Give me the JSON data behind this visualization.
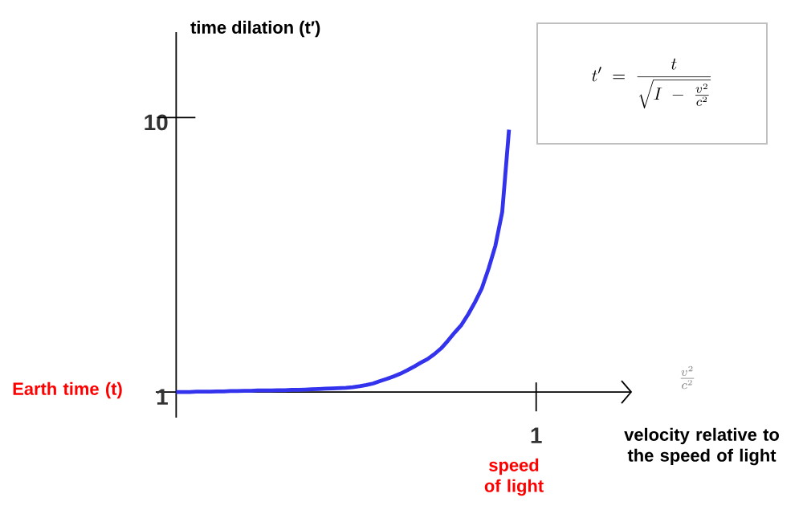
{
  "chart_data": {
    "type": "line",
    "ylabel": "time dilation (t′)",
    "categories": [
      null,
      null,
      null,
      null,
      null,
      null,
      null,
      null,
      null,
      null,
      null,
      null,
      null,
      null,
      null,
      null,
      null,
      null,
      null,
      null,
      null,
      null,
      null,
      null,
      null,
      null,
      null,
      null,
      null,
      null,
      null,
      null,
      null,
      null,
      null,
      null,
      null,
      null,
      null,
      null,
      null,
      null,
      null,
      null,
      null,
      null,
      null,
      null,
      null,
      null
    ],
    "values": [
      1,
      1,
      1,
      1.01,
      1.01,
      1.01,
      1.02,
      1.02,
      1.03,
      1.03,
      1.04,
      1.04,
      1.05,
      1.05,
      1.05,
      1.06,
      1.06,
      1.07,
      1.07,
      1.08,
      1.09,
      1.1,
      1.11,
      1.12,
      1.13,
      1.14,
      1.16,
      1.19,
      1.23,
      1.28,
      1.36,
      1.43,
      1.51,
      1.6,
      1.71,
      1.83,
      1.96,
      2.08,
      2.24,
      2.43,
      2.68,
      2.95,
      3.2,
      3.55,
      3.95,
      4.4,
      5.05,
      5.8,
      6.9,
      9.6
    ],
    "color": "#3333ee",
    "ylim": [
      0.16,
      12.8
    ],
    "yticks": [
      1,
      10
    ],
    "annotations": [
      "1",
      "Earth time (t)",
      "speed of light",
      "\\frac{v^2}{c^2}",
      "t' \\;=\\; \\frac{t}{\\sqrt{I \\;-\\; \\frac{v^2}{c^2}}}",
      "velocity relative to the speed of light"
    ]
  }
}
